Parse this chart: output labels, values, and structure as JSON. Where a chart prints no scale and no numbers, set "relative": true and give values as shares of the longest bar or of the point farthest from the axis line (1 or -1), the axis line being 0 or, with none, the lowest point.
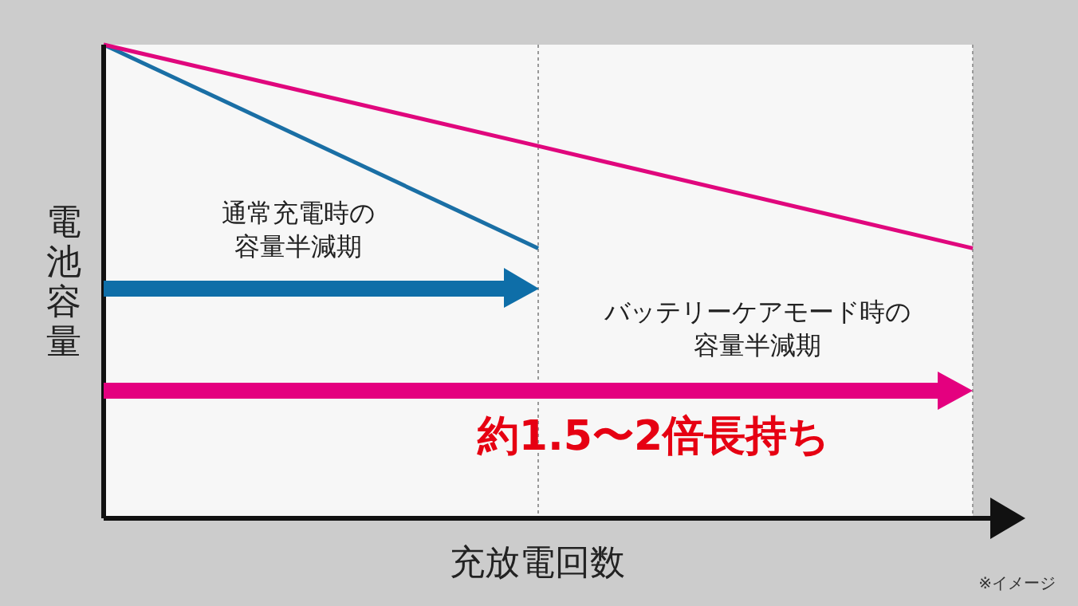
{
  "chart_data": {
    "type": "line",
    "xlabel": "充放電回数",
    "ylabel": "電池容量",
    "relative": true,
    "categories": [
      null,
      null,
      null
    ],
    "series": [
      {
        "color": "#1a6fa5",
        "values": [
          1,
          0.57,
          null
        ]
      },
      {
        "color": "#e0077d",
        "values": [
          1,
          0.786,
          0.57
        ]
      }
    ],
    "annotations": [
      "通常充電時の容量半減期",
      "バッテリーケアモード時の容量半減期",
      "約1.5〜2倍長持ち",
      "※イメージ"
    ]
  }
}
